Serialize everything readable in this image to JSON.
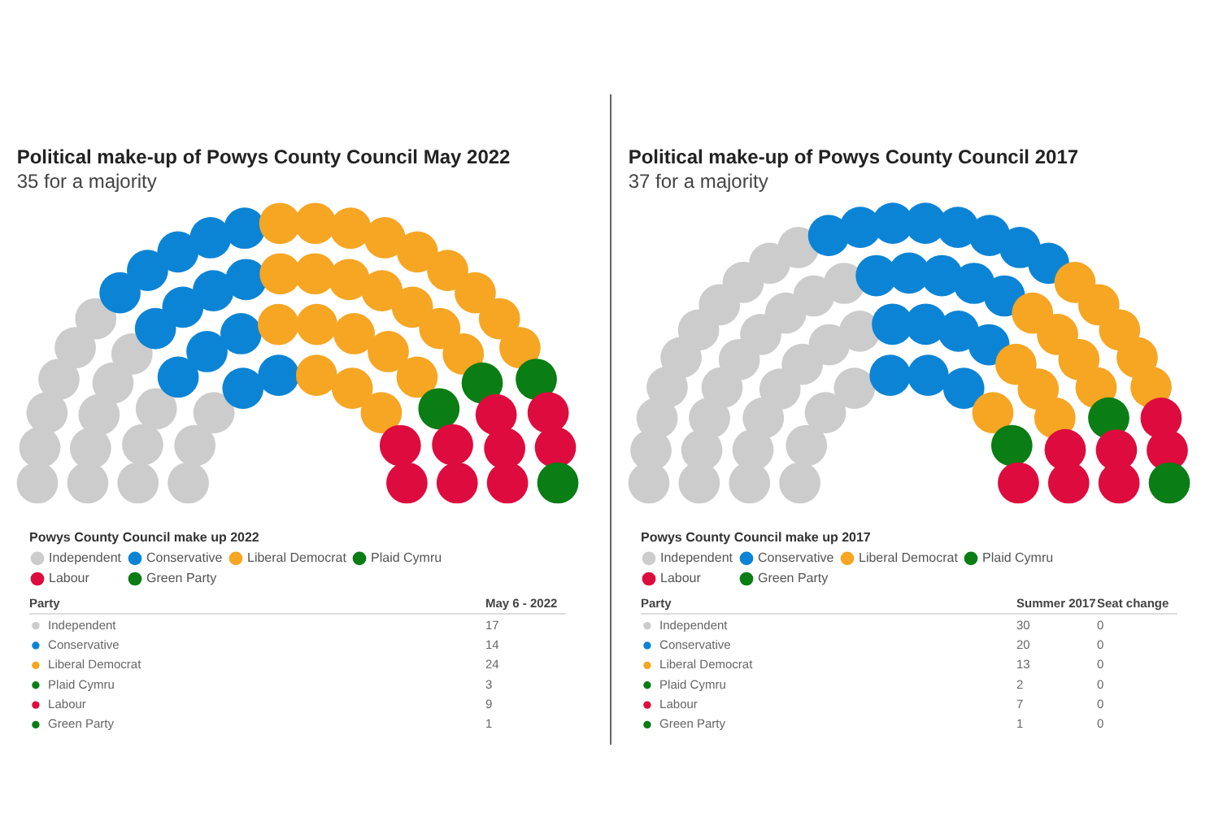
{
  "chart_data": [
    {
      "type": "other",
      "title": "Political make-up of Powys County Council May 2022",
      "subtitle": "35 for a majority",
      "legend_title": "Powys County Council make up 2022",
      "xlabel": "Party",
      "categories": [
        "Independent",
        "Conservative",
        "Liberal Democrat",
        "Plaid Cymru",
        "Labour",
        "Green Party"
      ],
      "colors": [
        "#cccccc",
        "#0b84d6",
        "#f6a623",
        "#0a7d14",
        "#de0b3e",
        "#0a7d14"
      ],
      "series": [
        {
          "name": "May 6 - 2022",
          "values": [
            17,
            14,
            24,
            3,
            9,
            1
          ]
        }
      ],
      "data_labels": true,
      "legend": "bottom"
    },
    {
      "type": "other",
      "title": "Political make-up of Powys County Council 2017",
      "subtitle": "37 for a majority",
      "legend_title": "Powys County Council make up 2017",
      "xlabel": "Party",
      "categories": [
        "Independent",
        "Conservative",
        "Liberal Democrat",
        "Plaid Cymru",
        "Labour",
        "Green Party"
      ],
      "colors": [
        "#cccccc",
        "#0b84d6",
        "#f6a623",
        "#0a7d14",
        "#de0b3e",
        "#0a7d14"
      ],
      "series": [
        {
          "name": "Summer 2017",
          "values": [
            30,
            20,
            13,
            2,
            7,
            1
          ]
        },
        {
          "name": "Seat change",
          "values": [
            0,
            0,
            0,
            0,
            0,
            0
          ]
        }
      ],
      "data_labels": true,
      "legend": "bottom"
    }
  ]
}
